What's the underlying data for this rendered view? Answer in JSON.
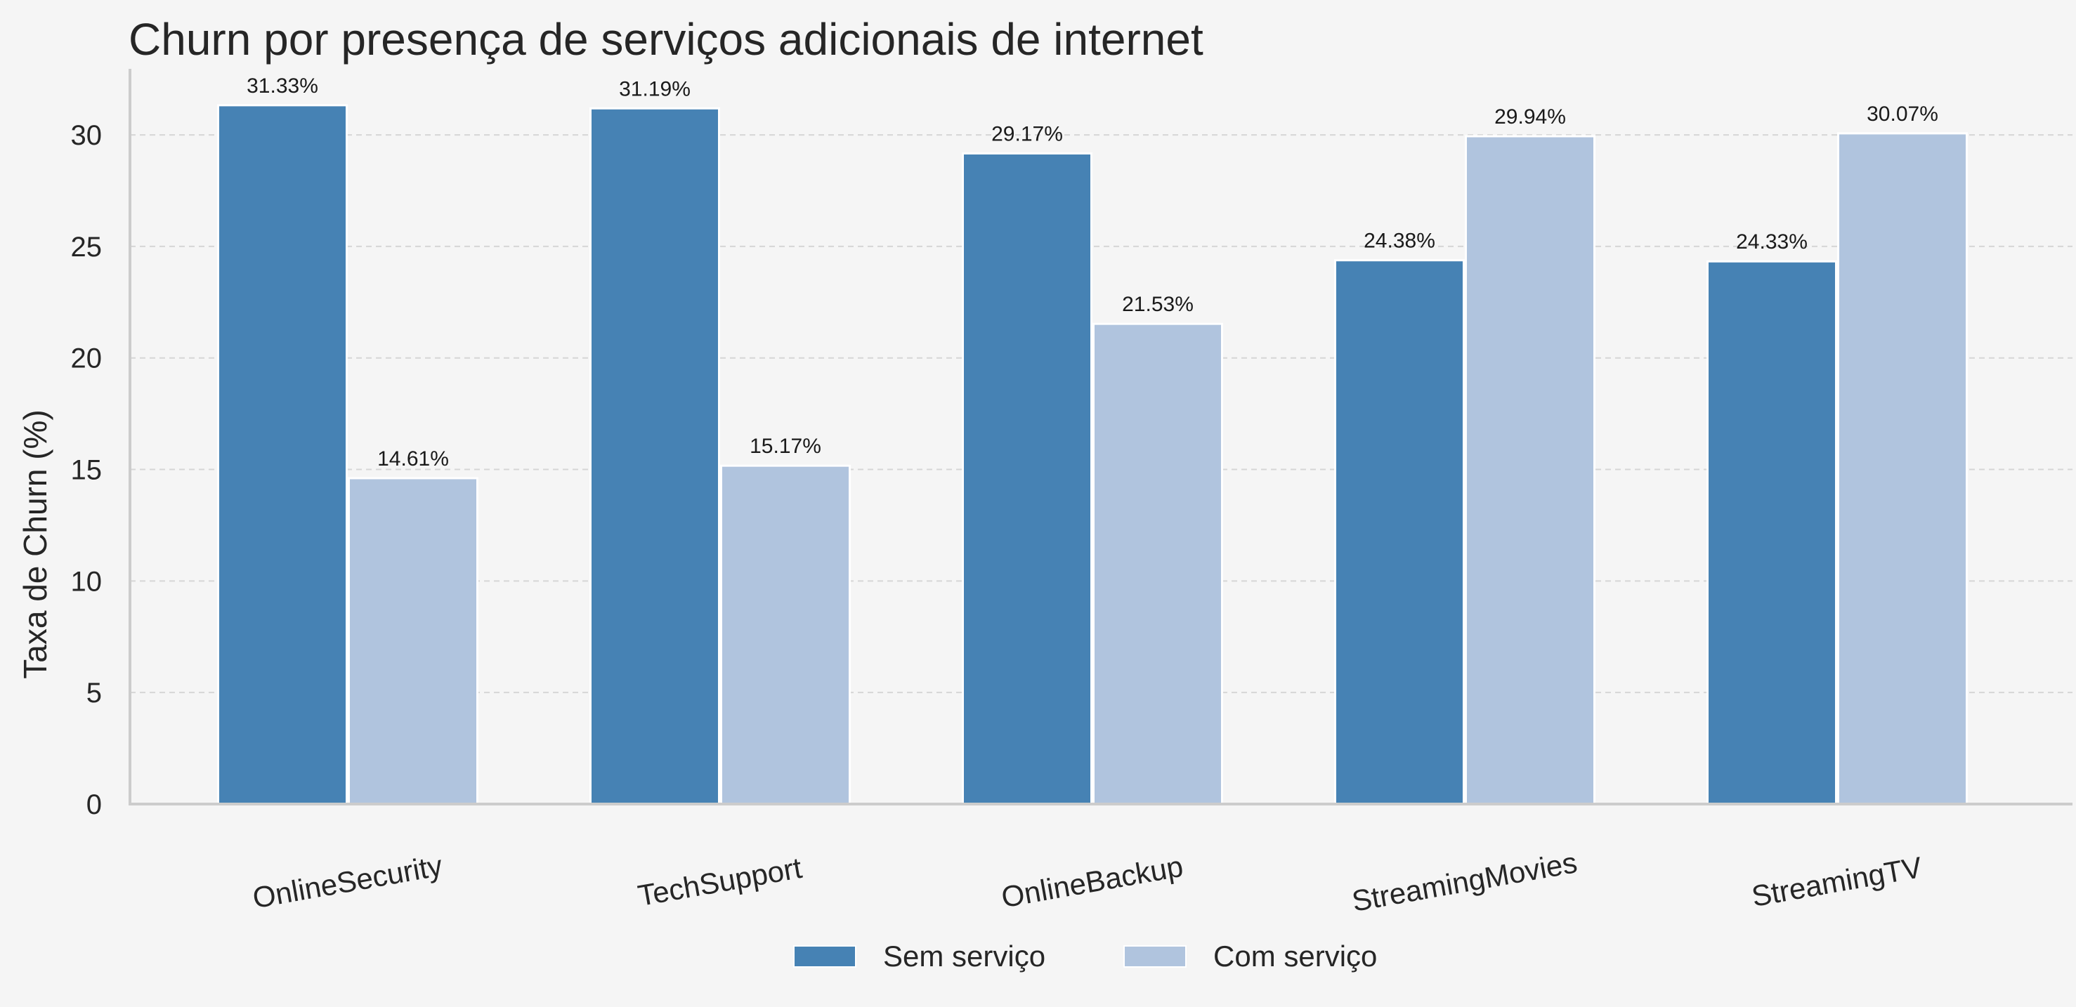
{
  "chart_data": {
    "type": "bar",
    "title": "Churn por presença de serviços adicionais de internet",
    "xlabel": "",
    "ylabel": "Taxa de Churn (%)",
    "ylim": [
      0,
      32.9
    ],
    "yticks": [
      0,
      5,
      10,
      15,
      20,
      25,
      30
    ],
    "grid": "horizontal dashed",
    "legend_position": "bottom-center",
    "categories": [
      "OnlineSecurity",
      "TechSupport",
      "OnlineBackup",
      "StreamingMovies",
      "StreamingTV"
    ],
    "series": [
      {
        "name": "Sem serviço",
        "color": "#4682b4",
        "values": [
          31.33,
          31.19,
          29.17,
          24.38,
          24.33
        ],
        "labels": [
          "31.33%",
          "31.19%",
          "29.17%",
          "24.38%",
          "24.33%"
        ]
      },
      {
        "name": "Com serviço",
        "color": "#b0c4de",
        "values": [
          14.61,
          15.17,
          21.53,
          29.94,
          30.07
        ],
        "labels": [
          "14.61%",
          "15.17%",
          "21.53%",
          "29.94%",
          "30.07%"
        ]
      }
    ]
  }
}
